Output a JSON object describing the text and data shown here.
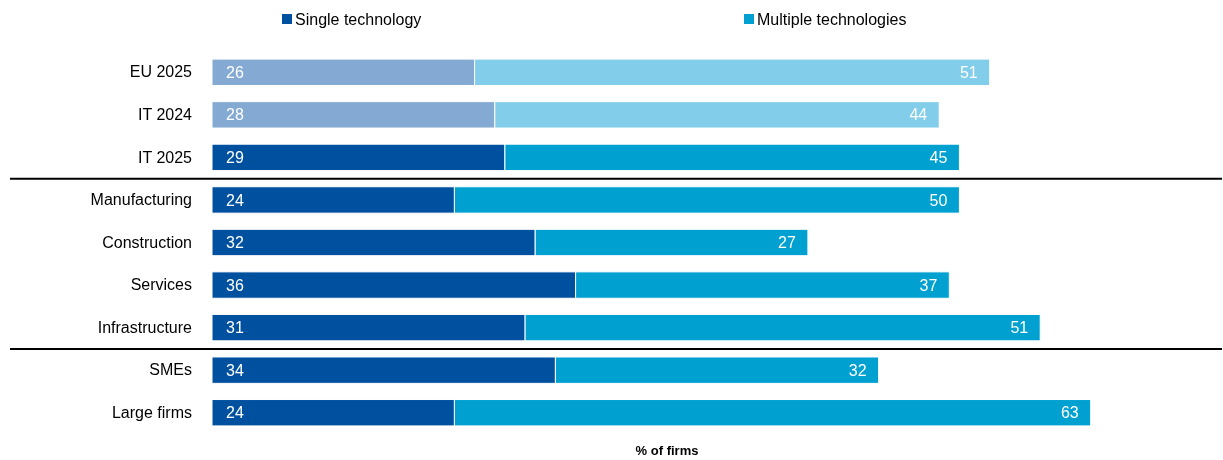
{
  "chart_data": {
    "type": "bar",
    "orientation": "horizontal",
    "stacked": true,
    "xlabel": "% of firms",
    "categories": [
      "EU 2025",
      "IT 2024",
      "IT 2025",
      "Manufacturing",
      "Construction",
      "Services",
      "Infrastructure",
      "SMEs",
      "Large firms"
    ],
    "series": [
      {
        "name": "Single technology",
        "color": "#0050a0",
        "colors": [
          "#84a9d2",
          "#84a9d2",
          "#0050a0",
          "#0050a0",
          "#0050a0",
          "#0050a0",
          "#0050a0",
          "#0050a0",
          "#0050a0"
        ],
        "values": [
          26,
          28,
          29,
          24,
          32,
          36,
          31,
          34,
          24
        ]
      },
      {
        "name": "Multiple technologies",
        "color": "#00a0d0",
        "colors": [
          "#82cdea",
          "#82cdea",
          "#00a0d0",
          "#00a0d0",
          "#00a0d0",
          "#00a0d0",
          "#00a0d0",
          "#00a0d0",
          "#00a0d0"
        ],
        "values": [
          51,
          44,
          45,
          50,
          27,
          37,
          51,
          32,
          63
        ]
      }
    ],
    "xlim": [
      0,
      100
    ],
    "tick_labels": "y",
    "data_labels": true,
    "legend": "top"
  }
}
